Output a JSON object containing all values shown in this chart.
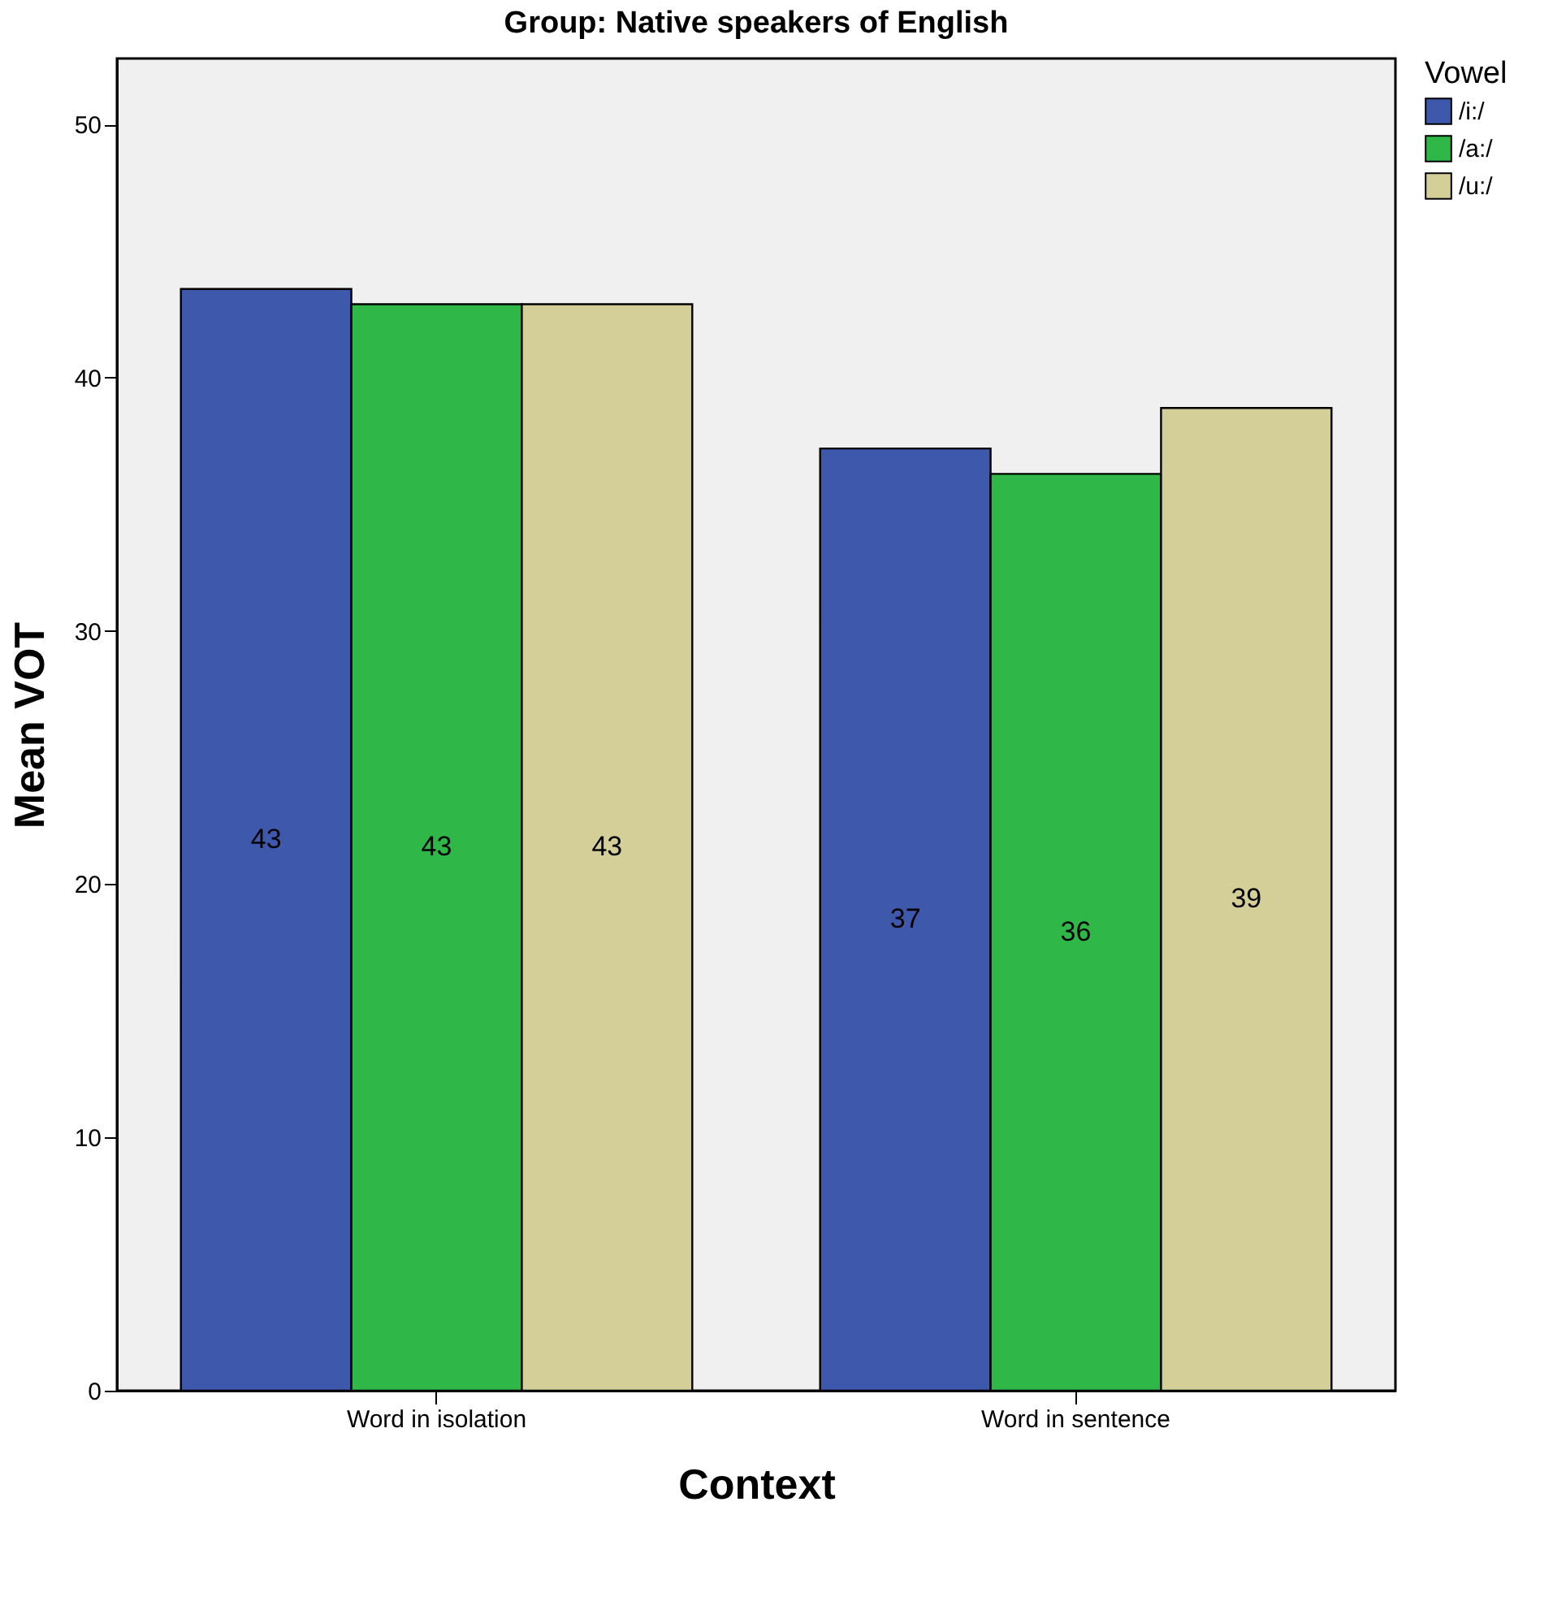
{
  "chart_data": {
    "type": "bar",
    "title": "Group: Native speakers of English",
    "xlabel": "Context",
    "ylabel": "Mean VOT",
    "legend_title": "Vowel",
    "categories": [
      "Word in isolation",
      "Word in sentence"
    ],
    "series": [
      {
        "name": "/i:/",
        "color": "#3e58ac",
        "values": [
          43.5,
          37.2
        ],
        "value_labels": [
          "43",
          "37"
        ]
      },
      {
        "name": "/a:/",
        "color": "#2fb847",
        "values": [
          42.9,
          36.2
        ],
        "value_labels": [
          "43",
          "36"
        ]
      },
      {
        "name": "/u:/",
        "color": "#d4cf99",
        "values": [
          42.9,
          38.8
        ],
        "value_labels": [
          "43",
          "39"
        ]
      }
    ],
    "ylim": [
      0,
      52.6
    ],
    "yticks": [
      0,
      10,
      20,
      30,
      40,
      50
    ],
    "grid": false,
    "legend": "top right"
  }
}
